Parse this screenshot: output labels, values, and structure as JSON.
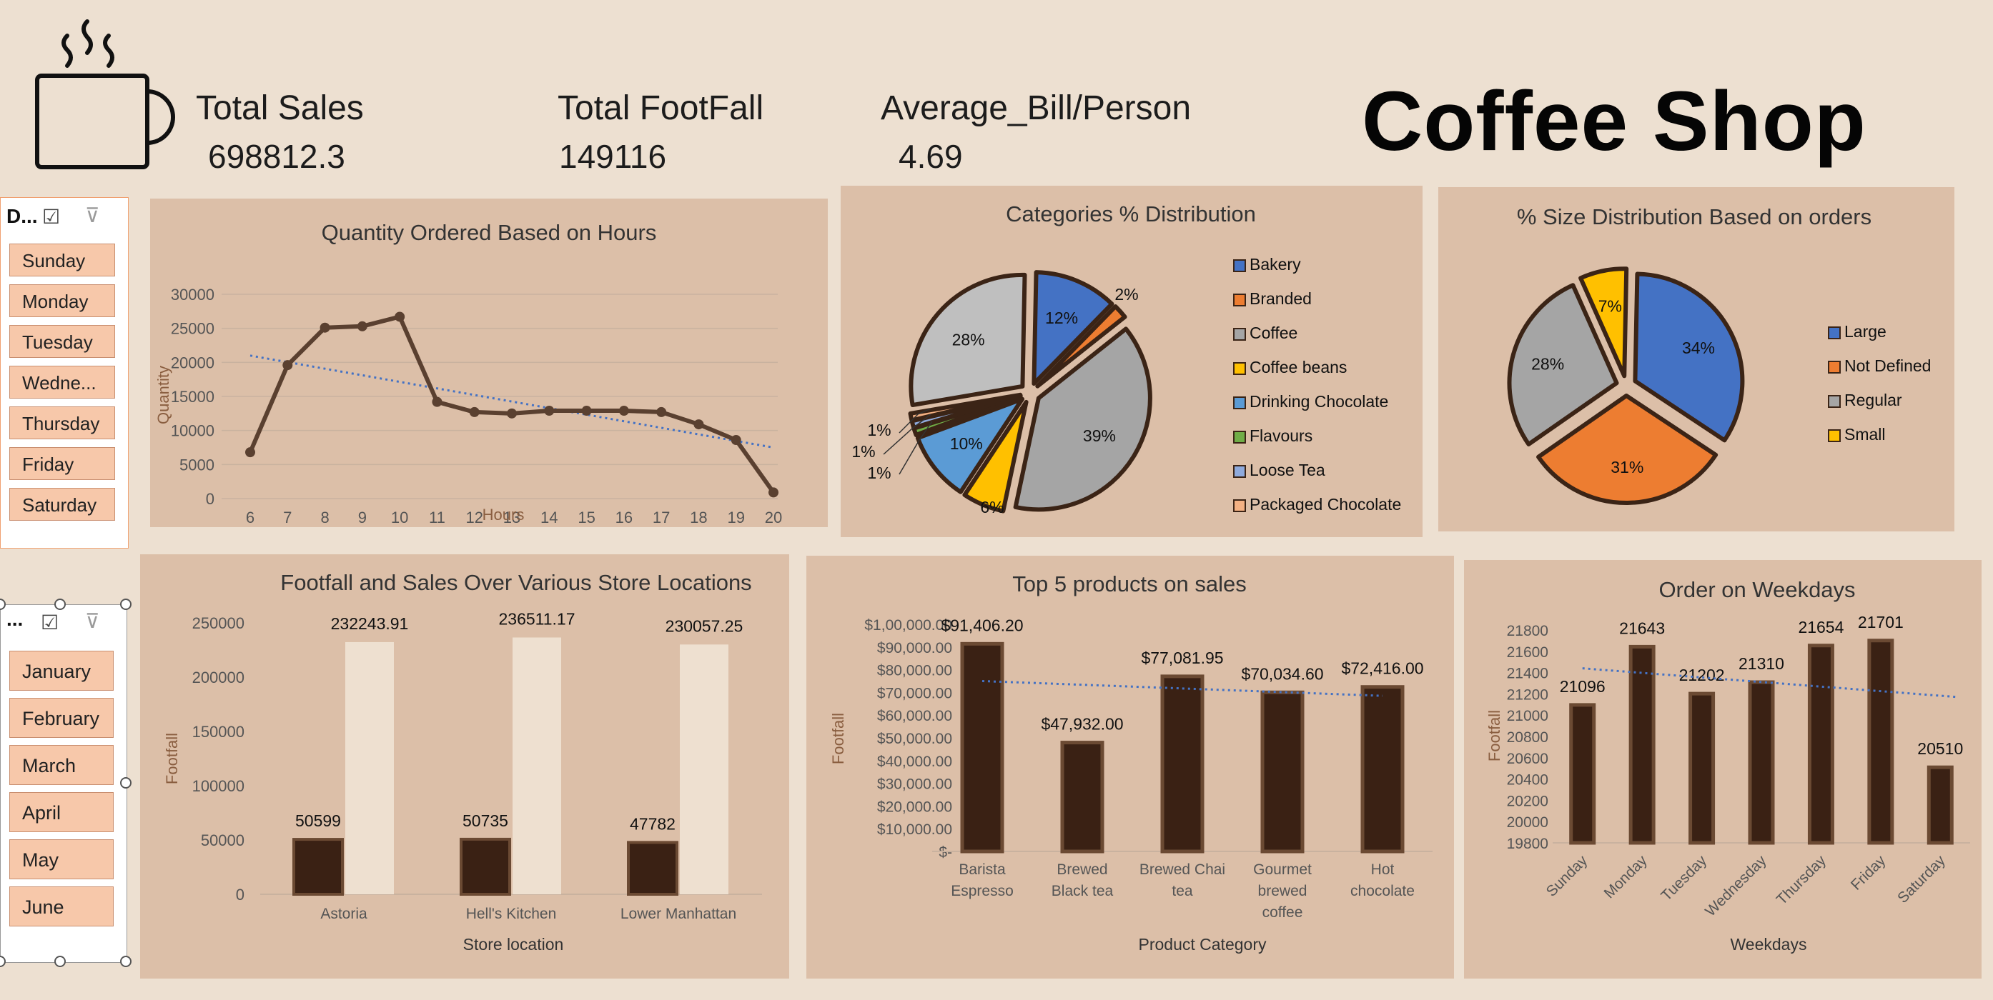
{
  "header": {
    "kpis": [
      {
        "title": "Total Sales",
        "value": "698812.3"
      },
      {
        "title": "Total FootFall",
        "value": "149116"
      },
      {
        "title": "Average_Bill/Person",
        "value": "4.69"
      }
    ],
    "brand": "Coffee Shop"
  },
  "slicers": {
    "day": {
      "header": "D...",
      "items": [
        "Sunday",
        "Monday",
        "Tuesday",
        "Wedne...",
        "Thursday",
        "Friday",
        "Saturday"
      ]
    },
    "month": {
      "header": "...",
      "items": [
        "January",
        "February",
        "March",
        "April",
        "May",
        "June"
      ]
    }
  },
  "chart_data": [
    {
      "type": "line",
      "title": "Quantity Ordered Based on Hours",
      "xlabel": "Hours",
      "ylabel": "Quantity",
      "x": [
        6,
        7,
        8,
        9,
        10,
        11,
        12,
        13,
        14,
        15,
        16,
        17,
        18,
        19,
        20
      ],
      "values": [
        6800,
        19600,
        25100,
        25300,
        26700,
        14200,
        12700,
        12500,
        12900,
        12900,
        12900,
        12700,
        10900,
        8600,
        900
      ],
      "y_ticks": [
        "0",
        "5000",
        "10000",
        "15000",
        "20000",
        "25000",
        "30000"
      ],
      "ylim": [
        0,
        30000
      ],
      "trendline": [
        21000,
        7500
      ],
      "grid": true,
      "colors": {
        "line": "#5a4030",
        "trend": "#4472c4"
      }
    },
    {
      "type": "pie",
      "title": "Categories % Distribution",
      "legend_position": "right",
      "slices": [
        {
          "label": "Bakery",
          "value": 12,
          "display": "12%",
          "color": "#4472c4"
        },
        {
          "label": "Branded",
          "value": 2,
          "display": "2%",
          "color": "#ed7d31"
        },
        {
          "label": "Coffee",
          "value": 39,
          "display": "39%",
          "color": "#a5a5a5"
        },
        {
          "label": "Coffee beans",
          "value": 6,
          "display": "6%",
          "color": "#ffc000"
        },
        {
          "label": "Drinking Chocolate",
          "value": 10,
          "display": "10%",
          "color": "#5b9bd5"
        },
        {
          "label": "Flavours",
          "value": 1,
          "display": "1%",
          "color": "#70ad47"
        },
        {
          "label": "Loose Tea",
          "value": 1,
          "display": "1%",
          "color": "#8faadc"
        },
        {
          "label": "Packaged Chocolate",
          "value": 1,
          "display": "1%",
          "color": "#f4b183"
        },
        {
          "label": "",
          "value": 28,
          "display": "28%",
          "color": "#bfbfbf"
        }
      ]
    },
    {
      "type": "pie",
      "title": "% Size Distribution Based on orders",
      "legend_position": "right",
      "slices": [
        {
          "label": "Large",
          "value": 34,
          "display": "34%",
          "color": "#4472c4"
        },
        {
          "label": "Not Defined",
          "value": 31,
          "display": "31%",
          "color": "#ed7d31"
        },
        {
          "label": "Regular",
          "value": 28,
          "display": "28%",
          "color": "#a5a5a5"
        },
        {
          "label": "Small",
          "value": 7,
          "display": "7%",
          "color": "#ffc000"
        }
      ]
    },
    {
      "type": "bar",
      "title": "Footfall and Sales Over Various Store Locations",
      "xlabel": "Store location",
      "ylabel": "Footfall",
      "categories": [
        "Astoria",
        "Hell's Kitchen",
        "Lower Manhattan"
      ],
      "series": [
        {
          "values": [
            50599,
            50735,
            47782
          ],
          "labels": [
            "50599",
            "50735",
            "47782"
          ],
          "color": "#3a2114"
        },
        {
          "values": [
            232243.91,
            236511.17,
            230057.25
          ],
          "labels": [
            "232243.91",
            "236511.17",
            "230057.25"
          ],
          "color": "#eee0d0"
        }
      ],
      "y_ticks": [
        "0",
        "50000",
        "100000",
        "150000",
        "200000",
        "250000"
      ],
      "ylim": [
        0,
        250000
      ]
    },
    {
      "type": "bar",
      "title": "Top 5 products on sales",
      "xlabel": "Product Category",
      "ylabel": "Footfall",
      "categories": [
        [
          "Barista",
          "Espresso"
        ],
        [
          "Brewed",
          "Black tea"
        ],
        [
          "Brewed Chai",
          "tea"
        ],
        [
          "Gourmet",
          "brewed",
          "coffee"
        ],
        [
          "Hot",
          "chocolate"
        ]
      ],
      "values": [
        91406.2,
        47932.0,
        77081.95,
        70034.6,
        72416.0
      ],
      "labels": [
        "$91,406.20",
        "$47,932.00",
        "$77,081.95",
        "$70,034.60",
        "$72,416.00"
      ],
      "y_ticks": [
        "$-",
        "$10,000.00",
        "$20,000.00",
        "$30,000.00",
        "$40,000.00",
        "$50,000.00",
        "$60,000.00",
        "$70,000.00",
        "$80,000.00",
        "$90,000.00",
        "$1,00,000.00"
      ],
      "ylim": [
        0,
        100000
      ],
      "trendline": [
        75000,
        68500
      ],
      "color": "#3a2114"
    },
    {
      "type": "bar",
      "title": "Order on Weekdays",
      "xlabel": "Weekdays",
      "ylabel": "Footfall",
      "categories": [
        "Sunday",
        "Monday",
        "Tuesday",
        "Wednesday",
        "Thursday",
        "Friday",
        "Saturday"
      ],
      "values": [
        21096,
        21643,
        21202,
        21310,
        21654,
        21701,
        20510
      ],
      "labels": [
        "21096",
        "21643",
        "21202",
        "21310",
        "21654",
        "21701",
        "20510"
      ],
      "y_ticks": [
        "19800",
        "20000",
        "20200",
        "20400",
        "20600",
        "20800",
        "21000",
        "21200",
        "21400",
        "21600",
        "21800"
      ],
      "ylim": [
        19800,
        21800
      ],
      "trendline": [
        21440,
        21170
      ],
      "color": "#3a2114"
    }
  ]
}
